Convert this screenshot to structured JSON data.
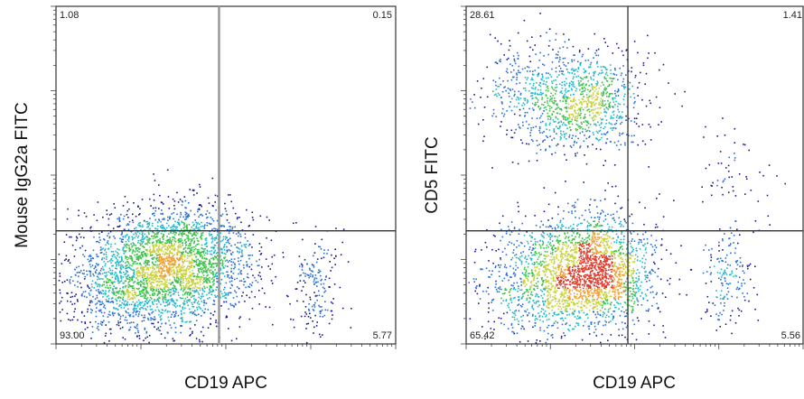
{
  "chart_data": [
    {
      "type": "scatter",
      "subtype": "flow-cytometry-dot-plot",
      "xlabel": "CD19 APC",
      "ylabel": "Mouse IgG2a FITC",
      "xlim": [
        0,
        1
      ],
      "ylim": [
        0,
        1
      ],
      "grid": false,
      "gate": {
        "x": 0.48,
        "y": 0.335
      },
      "quadrants": {
        "upper_left": "1.08",
        "upper_right": "0.15",
        "lower_left": "93.00",
        "lower_right": "5.77"
      },
      "populations": [
        {
          "cx": 0.36,
          "cy": 0.24,
          "sx": 0.11,
          "sy": 0.085,
          "n": 2400
        },
        {
          "cx": 0.2,
          "cy": 0.18,
          "sx": 0.1,
          "sy": 0.09,
          "n": 900
        },
        {
          "cx": 0.77,
          "cy": 0.17,
          "sx": 0.035,
          "sy": 0.08,
          "n": 180
        }
      ],
      "density_colors": [
        "#1a1a8c",
        "#2a6fd6",
        "#22b8c8",
        "#3cc24a",
        "#c8d23a",
        "#f0a030"
      ]
    },
    {
      "type": "scatter",
      "subtype": "flow-cytometry-dot-plot",
      "xlabel": "CD19 APC",
      "ylabel": "CD5 FITC",
      "xlim": [
        0,
        1
      ],
      "ylim": [
        0,
        1
      ],
      "grid": false,
      "gate": {
        "x": 0.48,
        "y": 0.335
      },
      "quadrants": {
        "upper_left": "28.61",
        "upper_right": "1.41",
        "lower_left": "65.42",
        "lower_right": "5.56"
      },
      "populations": [
        {
          "cx": 0.38,
          "cy": 0.22,
          "sx": 0.09,
          "sy": 0.085,
          "n": 1900
        },
        {
          "cx": 0.2,
          "cy": 0.18,
          "sx": 0.09,
          "sy": 0.09,
          "n": 700
        },
        {
          "cx": 0.35,
          "cy": 0.72,
          "sx": 0.09,
          "sy": 0.075,
          "n": 900
        },
        {
          "cx": 0.18,
          "cy": 0.75,
          "sx": 0.08,
          "sy": 0.08,
          "n": 300
        },
        {
          "cx": 0.78,
          "cy": 0.2,
          "sx": 0.04,
          "sy": 0.08,
          "n": 170
        },
        {
          "cx": 0.78,
          "cy": 0.48,
          "sx": 0.06,
          "sy": 0.08,
          "n": 60
        }
      ],
      "density_colors": [
        "#1a1a8c",
        "#2a6fd6",
        "#22b8c8",
        "#3cc24a",
        "#c8d23a",
        "#f0a030",
        "#e03a2a"
      ]
    }
  ]
}
